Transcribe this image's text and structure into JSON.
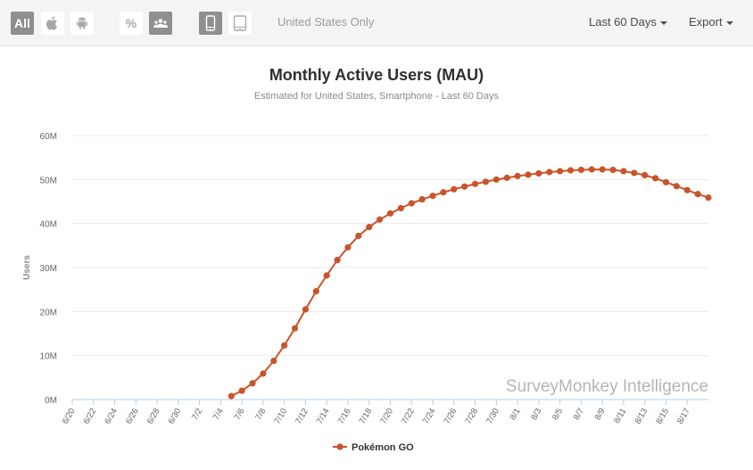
{
  "toolbar": {
    "platform_all_label": "All",
    "percent_label": "%",
    "filter_text": "United States Only",
    "date_range_label": "Last 60 Days",
    "export_label": "Export"
  },
  "icons": {
    "apple": "apple-icon",
    "android": "android-icon",
    "users": "users-icon",
    "smartphone": "smartphone-icon",
    "tablet": "tablet-icon"
  },
  "colors": {
    "series": "#c9542b",
    "active_button": "#8f8f8f",
    "grid": "#e8e8e8",
    "axis": "#b7cfe6",
    "watermark": "#b5b5b5"
  },
  "watermark": "SurveyMonkey Intelligence",
  "chart_data": {
    "type": "line",
    "title": "Monthly Active Users (MAU)",
    "subtitle": "Estimated for United States, Smartphone - Last 60 Days",
    "xlabel": "",
    "ylabel": "Users",
    "ylim": [
      0,
      60
    ],
    "y_ticks": [
      0,
      10,
      20,
      30,
      40,
      50,
      60
    ],
    "y_tick_labels": [
      "0M",
      "10M",
      "20M",
      "30M",
      "40M",
      "50M",
      "60M"
    ],
    "x_start": "6/20",
    "x_tick_labels": [
      "6/20",
      "6/22",
      "6/24",
      "6/26",
      "6/28",
      "6/30",
      "7/2",
      "7/4",
      "7/6",
      "7/8",
      "7/10",
      "7/12",
      "7/14",
      "7/16",
      "7/18",
      "7/20",
      "7/22",
      "7/24",
      "7/26",
      "7/28",
      "7/30",
      "8/1",
      "8/3",
      "8/5",
      "8/7",
      "8/9",
      "8/11",
      "8/13",
      "8/15",
      "8/17"
    ],
    "legend": "bottom-center",
    "grid": true,
    "series": [
      {
        "name": "Pokémon GO",
        "start_index": 15,
        "values": [
          0.8,
          2.0,
          3.7,
          5.9,
          8.8,
          12.3,
          16.2,
          20.5,
          24.6,
          28.2,
          31.7,
          34.6,
          37.2,
          39.2,
          40.9,
          42.3,
          43.5,
          44.6,
          45.5,
          46.3,
          47.1,
          47.8,
          48.4,
          49.0,
          49.5,
          50.0,
          50.4,
          50.8,
          51.1,
          51.4,
          51.7,
          51.9,
          52.1,
          52.2,
          52.3,
          52.3,
          52.2,
          51.9,
          51.5,
          51.0,
          50.3,
          49.4,
          48.5,
          47.6,
          46.7,
          45.9
        ]
      }
    ]
  }
}
